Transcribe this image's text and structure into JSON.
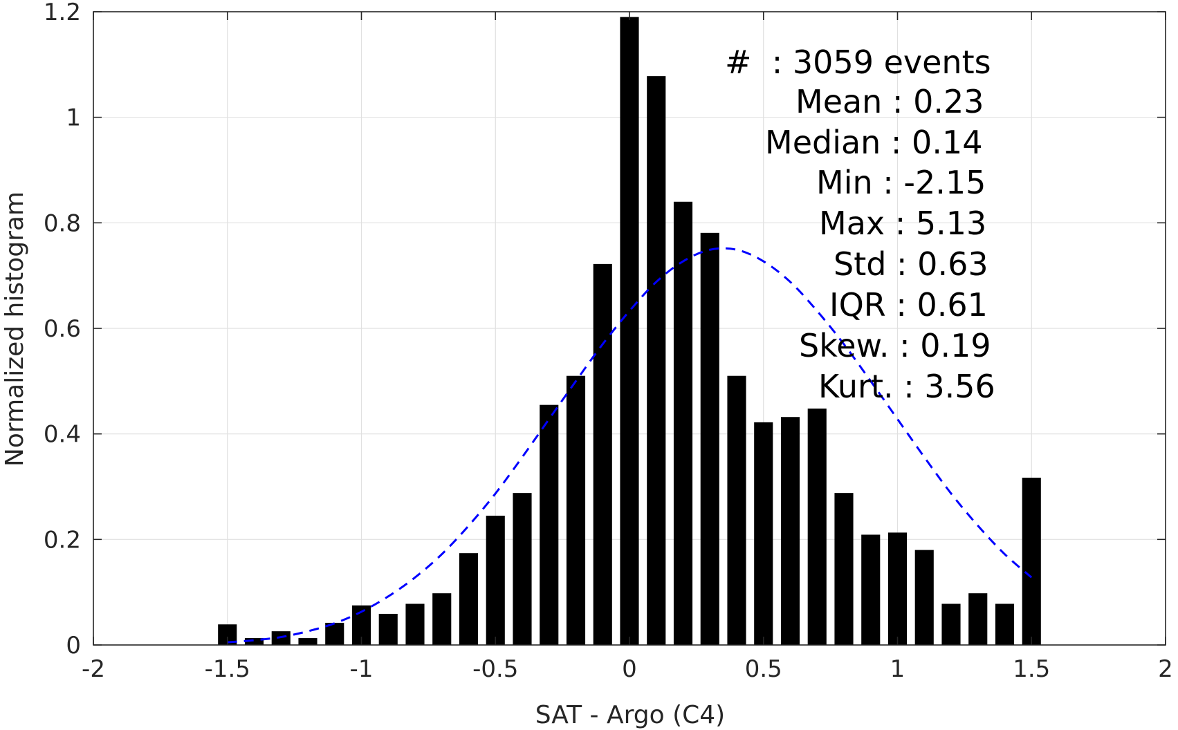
{
  "chart_data": {
    "type": "bar",
    "xlabel": "SAT - Argo (C4)",
    "ylabel": "Normalized histogram",
    "xlim": [
      -2,
      2
    ],
    "ylim": [
      0,
      1.2
    ],
    "xticks": [
      "-2",
      "-1.5",
      "-1",
      "-0.5",
      "0",
      "0.5",
      "1",
      "1.5",
      "2"
    ],
    "xtick_values": [
      -2,
      -1.5,
      -1,
      -0.5,
      0,
      0.5,
      1,
      1.5,
      2
    ],
    "yticks": [
      "0",
      "0.2",
      "0.4",
      "0.6",
      "0.8",
      "1",
      "1.2"
    ],
    "ytick_values": [
      0,
      0.2,
      0.4,
      0.6,
      0.8,
      1.0,
      1.2
    ],
    "grid": true,
    "bar_width": 0.07,
    "bar_color": "#000000",
    "bars": [
      {
        "x": -1.5,
        "y": 0.039
      },
      {
        "x": -1.4,
        "y": 0.013
      },
      {
        "x": -1.3,
        "y": 0.026
      },
      {
        "x": -1.2,
        "y": 0.013
      },
      {
        "x": -1.1,
        "y": 0.042
      },
      {
        "x": -1.0,
        "y": 0.075
      },
      {
        "x": -0.9,
        "y": 0.059
      },
      {
        "x": -0.8,
        "y": 0.078
      },
      {
        "x": -0.7,
        "y": 0.098
      },
      {
        "x": -0.6,
        "y": 0.174
      },
      {
        "x": -0.5,
        "y": 0.245
      },
      {
        "x": -0.4,
        "y": 0.288
      },
      {
        "x": -0.3,
        "y": 0.455
      },
      {
        "x": -0.2,
        "y": 0.51
      },
      {
        "x": -0.1,
        "y": 0.722
      },
      {
        "x": 0.0,
        "y": 1.19
      },
      {
        "x": 0.1,
        "y": 1.078
      },
      {
        "x": 0.2,
        "y": 0.84
      },
      {
        "x": 0.3,
        "y": 0.781
      },
      {
        "x": 0.4,
        "y": 0.51
      },
      {
        "x": 0.5,
        "y": 0.422
      },
      {
        "x": 0.6,
        "y": 0.432
      },
      {
        "x": 0.7,
        "y": 0.448
      },
      {
        "x": 0.8,
        "y": 0.288
      },
      {
        "x": 0.9,
        "y": 0.209
      },
      {
        "x": 1.0,
        "y": 0.213
      },
      {
        "x": 1.1,
        "y": 0.18
      },
      {
        "x": 1.2,
        "y": 0.078
      },
      {
        "x": 1.3,
        "y": 0.098
      },
      {
        "x": 1.4,
        "y": 0.078
      },
      {
        "x": 1.5,
        "y": 0.317
      }
    ],
    "fit_curve": {
      "style": "dashed",
      "color": "#0000ff",
      "x": [
        -1.5,
        -1.4,
        -1.3,
        -1.2,
        -1.1,
        -1.0,
        -0.9,
        -0.8,
        -0.7,
        -0.6,
        -0.5,
        -0.4,
        -0.3,
        -0.2,
        -0.1,
        0.0,
        0.1,
        0.2,
        0.3,
        0.4,
        0.5,
        0.6,
        0.7,
        0.8,
        0.9,
        1.0,
        1.1,
        1.2,
        1.3,
        1.4,
        1.5
      ],
      "y": [
        0.005,
        0.009,
        0.015,
        0.026,
        0.041,
        0.063,
        0.092,
        0.128,
        0.172,
        0.226,
        0.287,
        0.356,
        0.428,
        0.5,
        0.57,
        0.633,
        0.688,
        0.727,
        0.749,
        0.749,
        0.727,
        0.688,
        0.633,
        0.57,
        0.5,
        0.428,
        0.356,
        0.287,
        0.226,
        0.172,
        0.128
      ]
    },
    "annotations": [
      "#  : 3059 events",
      "Mean : 0.23",
      "Median : 0.14",
      "Min : -2.15",
      "Max : 5.13",
      "Std : 0.63",
      "IQR : 0.61",
      "Skew. : 0.19",
      "Kurt. : 3.56"
    ]
  }
}
